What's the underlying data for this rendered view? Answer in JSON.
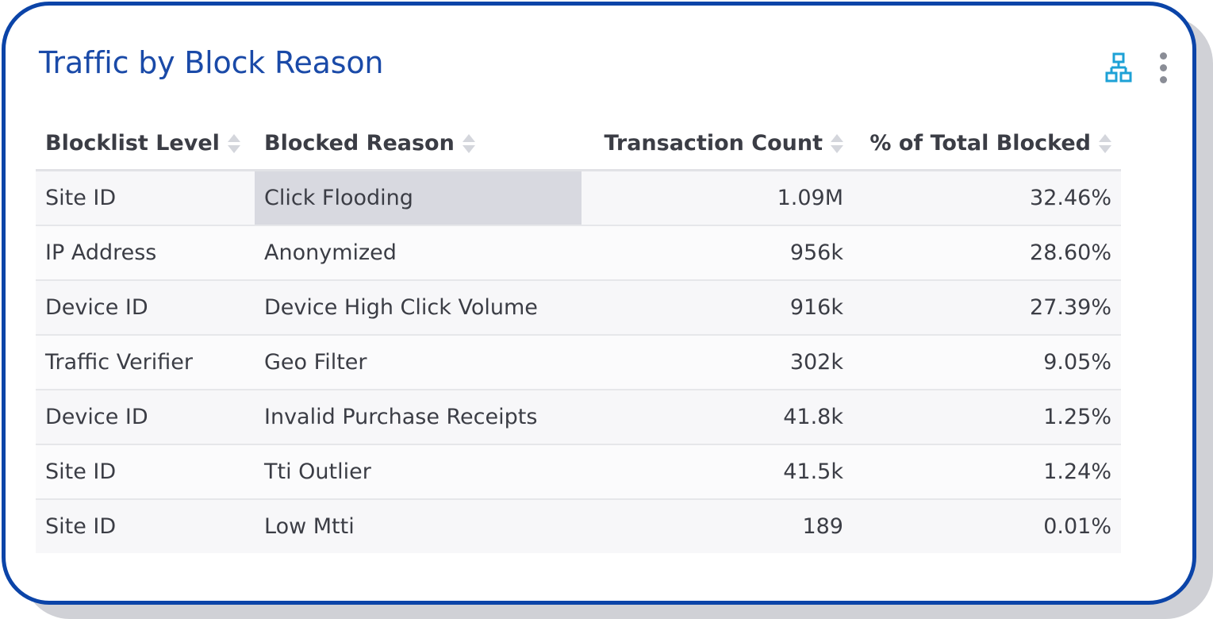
{
  "widget": {
    "title": "Traffic by Block Reason",
    "actions": {
      "hierarchy_icon": "hierarchy-tree-icon",
      "menu_icon": "kebab-menu-icon"
    },
    "accent_color": "#0b44a8",
    "title_color": "#1a4aa8",
    "icon_color": "#1da1d6"
  },
  "table": {
    "columns": [
      {
        "label": "Blocklist Level",
        "sortable": true
      },
      {
        "label": "Blocked Reason",
        "sortable": true
      },
      {
        "label": "Transaction Count",
        "sortable": true
      },
      {
        "label": "% of Total Blocked",
        "sortable": true
      }
    ],
    "rows": [
      {
        "level": "Site ID",
        "reason": "Click Flooding",
        "count": "1.09M",
        "percent": "32.46%"
      },
      {
        "level": "IP Address",
        "reason": "Anonymized",
        "count": "956k",
        "percent": "28.60%"
      },
      {
        "level": "Device ID",
        "reason": "Device High Click Volume",
        "count": "916k",
        "percent": "27.39%"
      },
      {
        "level": "Traffic Verifier",
        "reason": "Geo Filter",
        "count": "302k",
        "percent": "9.05%"
      },
      {
        "level": "Device ID",
        "reason": "Invalid Purchase Receipts",
        "count": "41.8k",
        "percent": "1.25%"
      },
      {
        "level": "Site ID",
        "reason": "Tti Outlier",
        "count": "41.5k",
        "percent": "1.24%"
      },
      {
        "level": "Site ID",
        "reason": "Low Mtti",
        "count": "189",
        "percent": "0.01%"
      }
    ]
  }
}
